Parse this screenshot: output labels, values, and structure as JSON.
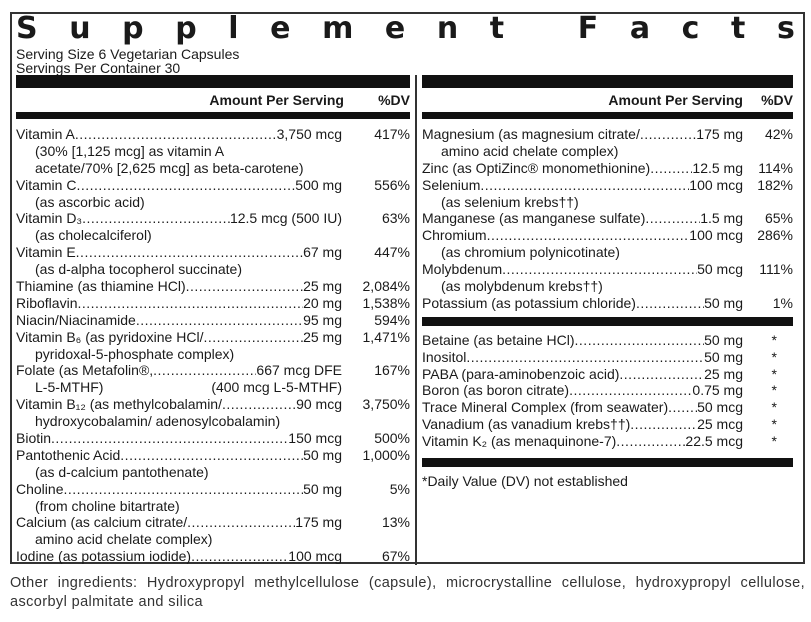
{
  "title": "Supplement Facts",
  "serving_size": "Serving Size 6 Vegetarian Capsules",
  "servings_per_container": "Servings Per Container 30",
  "header": {
    "amount": "Amount Per Serving",
    "dv": "%DV"
  },
  "left_rows": [
    {
      "name": "Vitamin A",
      "amount": "3,750 mcg",
      "dv": "417%",
      "sub": [
        "(30% [1,125 mcg] as vitamin A",
        "acetate/70% [2,625 mcg] as beta-carotene)"
      ]
    },
    {
      "name": "Vitamin C",
      "amount": "500 mg",
      "dv": "556%",
      "sub": [
        "(as ascorbic acid)"
      ]
    },
    {
      "name": "Vitamin D₃",
      "amount": "12.5 mcg (500 IU)",
      "dv": "63%",
      "sub": [
        "(as cholecalciferol)"
      ]
    },
    {
      "name": "Vitamin E",
      "amount": "67 mg",
      "dv": "447%",
      "sub": [
        "(as d-alpha tocopherol succinate)"
      ]
    },
    {
      "name": "Thiamine (as thiamine HCl) ",
      "amount": "25 mg",
      "dv": "2,084%"
    },
    {
      "name": "Riboflavin ",
      "amount": "20 mg",
      "dv": "1,538%"
    },
    {
      "name": "Niacin/Niacinamide ",
      "amount": "95 mg",
      "dv": "594%"
    },
    {
      "name": "Vitamin B₆ (as pyridoxine HCl/",
      "amount": "25 mg",
      "dv": "1,471%",
      "sub": [
        "pyridoxal-5-phosphate complex)"
      ]
    },
    {
      "name": "Folate (as Metafolin®, ",
      "amount": " 667 mcg DFE",
      "dv": "167%",
      "sub": [
        "L-5-MTHF)"
      ],
      "sub_right": "(400 mcg L-5-MTHF)"
    },
    {
      "name": "Vitamin B₁₂ (as methylcobalamin/",
      "amount": " 90 mcg",
      "dv": "3,750%",
      "sub": [
        "hydroxycobalamin/ adenosylcobalamin)"
      ]
    },
    {
      "name": "Biotin",
      "amount": " 150 mcg",
      "dv": "500%"
    },
    {
      "name": "Pantothenic Acid",
      "amount": "50 mg",
      "dv": "1,000%",
      "sub": [
        "(as d-calcium pantothenate)"
      ]
    },
    {
      "name": "Choline",
      "amount": "50 mg",
      "dv": "5%",
      "sub": [
        "(from choline bitartrate)"
      ]
    },
    {
      "name": "Calcium (as calcium citrate/ ",
      "amount": " 175 mg",
      "dv": "13%",
      "sub": [
        "amino acid chelate complex)"
      ]
    },
    {
      "name": "Iodine (as potassium iodide) ",
      "amount": " 100 mcg",
      "dv": "67%"
    }
  ],
  "right_rows": [
    {
      "name": "Magnesium (as magnesium citrate/ ",
      "amount": " 175 mg",
      "dv": "42%",
      "sub": [
        "amino acid chelate complex)"
      ]
    },
    {
      "name": "Zinc (as OptiZinc® monomethionine)",
      "amount": " 12.5 mg",
      "dv": "114%"
    },
    {
      "name": "Selenium",
      "amount": " 100 mcg",
      "dv": "182%",
      "sub": [
        "(as selenium krebs††)"
      ]
    },
    {
      "name": "Manganese (as manganese sulfate) ",
      "amount": " 1.5 mg",
      "dv": "65%"
    },
    {
      "name": "Chromium",
      "amount": " 100 mcg",
      "dv": "286%",
      "sub": [
        "(as chromium polynicotinate)"
      ]
    },
    {
      "name": "Molybdenum ",
      "amount": "50 mcg",
      "dv": "111%",
      "sub": [
        "(as molybdenum krebs††)"
      ]
    },
    {
      "name": "Potassium (as potassium chloride)",
      "amount": " 50 mg",
      "dv": "1%"
    }
  ],
  "other_rows": [
    {
      "name": "Betaine (as betaine HCl) ",
      "amount": "50 mg",
      "dv": "*"
    },
    {
      "name": "Inositol ",
      "amount": "50 mg",
      "dv": "*"
    },
    {
      "name": "PABA (para-aminobenzoic acid)",
      "amount": "25 mg",
      "dv": "*"
    },
    {
      "name": "Boron (as boron citrate)",
      "amount": "0.75 mg",
      "dv": "*"
    },
    {
      "name": "Trace Mineral Complex (from seawater) ",
      "amount": "50 mcg",
      "dv": "*"
    },
    {
      "name": "Vanadium (as vanadium krebs††)",
      "amount": "25 mcg",
      "dv": "*"
    },
    {
      "name": "Vitamin K₂ (as menaquinone-7)",
      "amount": "22.5 mcg",
      "dv": "*"
    }
  ],
  "dv_note": "*Daily Value (DV) not established",
  "other_ingredients": "Other ingredients: Hydroxypropyl methylcellulose (capsule), microcrystalline cellulose, hydroxypropyl cellulose, ascorbyl palmitate and silica"
}
